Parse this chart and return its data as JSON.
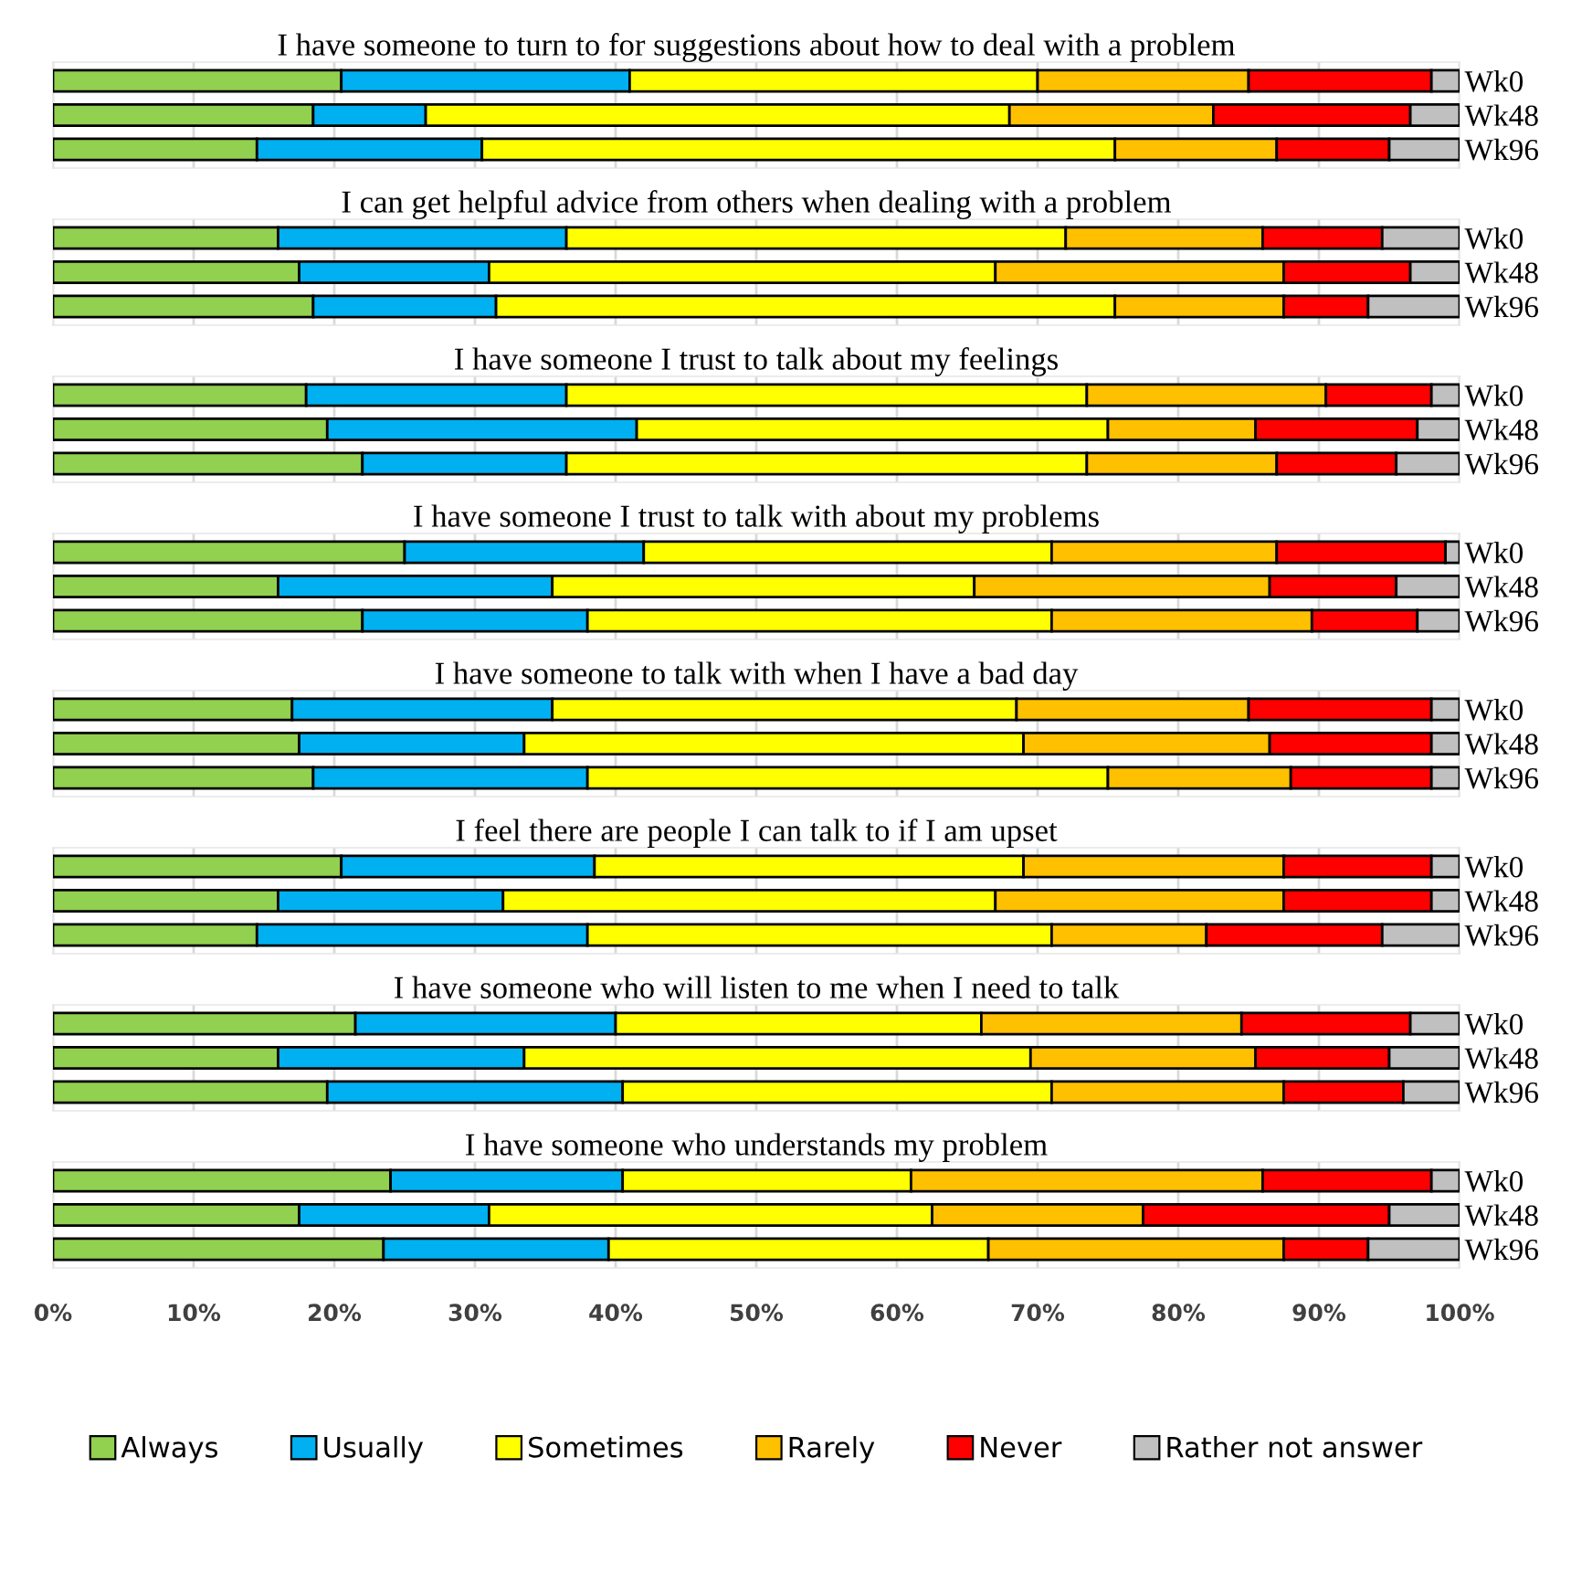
{
  "chart_data": [
    {
      "type": "bar",
      "orientation": "horizontal",
      "stacked": true,
      "title": "I have someone to turn to for suggestions about how to deal with a problem",
      "categories": [
        "Wk0",
        "Wk48",
        "Wk96"
      ],
      "xlim": [
        0,
        100
      ],
      "xticks": [
        0,
        10,
        20,
        30,
        40,
        50,
        60,
        70,
        80,
        90,
        100
      ],
      "grid": "x",
      "tick_labels": "y",
      "series": [
        {
          "color": "#92d050",
          "values": [
            20.5,
            18.5,
            14.5
          ]
        },
        {
          "color": "#00b0f0",
          "values": [
            20.5,
            8,
            16
          ]
        },
        {
          "color": "#ffff00",
          "values": [
            29,
            41.5,
            45
          ]
        },
        {
          "color": "#ffc000",
          "values": [
            15,
            14.5,
            11.5
          ]
        },
        {
          "color": "#ff0000",
          "values": [
            13,
            14,
            8
          ]
        },
        {
          "color": "#c0c0c0",
          "values": [
            2,
            3.5,
            5
          ]
        }
      ]
    },
    {
      "type": "bar",
      "orientation": "horizontal",
      "stacked": true,
      "title": "I can get helpful advice from others when dealing with a problem",
      "categories": [
        "Wk0",
        "Wk48",
        "Wk96"
      ],
      "xlim": [
        0,
        100
      ],
      "xticks": [
        0,
        10,
        20,
        30,
        40,
        50,
        60,
        70,
        80,
        90,
        100
      ],
      "grid": "x",
      "tick_labels": "y",
      "series": [
        {
          "color": "#92d050",
          "values": [
            16,
            17.5,
            18.5
          ]
        },
        {
          "color": "#00b0f0",
          "values": [
            20.5,
            13.5,
            13
          ]
        },
        {
          "color": "#ffff00",
          "values": [
            35.5,
            36,
            44
          ]
        },
        {
          "color": "#ffc000",
          "values": [
            14,
            20.5,
            12
          ]
        },
        {
          "color": "#ff0000",
          "values": [
            8.5,
            9,
            6
          ]
        },
        {
          "color": "#c0c0c0",
          "values": [
            5.5,
            3.5,
            6.5
          ]
        }
      ]
    },
    {
      "type": "bar",
      "orientation": "horizontal",
      "stacked": true,
      "title": "I have someone I trust to talk about my feelings",
      "categories": [
        "Wk0",
        "Wk48",
        "Wk96"
      ],
      "xlim": [
        0,
        100
      ],
      "xticks": [
        0,
        10,
        20,
        30,
        40,
        50,
        60,
        70,
        80,
        90,
        100
      ],
      "grid": "x",
      "tick_labels": "y",
      "series": [
        {
          "color": "#92d050",
          "values": [
            18,
            19.5,
            22
          ]
        },
        {
          "color": "#00b0f0",
          "values": [
            18.5,
            22,
            14.5
          ]
        },
        {
          "color": "#ffff00",
          "values": [
            37,
            33.5,
            37
          ]
        },
        {
          "color": "#ffc000",
          "values": [
            17,
            10.5,
            13.5
          ]
        },
        {
          "color": "#ff0000",
          "values": [
            7.5,
            11.5,
            8.5
          ]
        },
        {
          "color": "#c0c0c0",
          "values": [
            2,
            3,
            4.5
          ]
        }
      ]
    },
    {
      "type": "bar",
      "orientation": "horizontal",
      "stacked": true,
      "title": "I have someone I trust to talk with about my problems",
      "categories": [
        "Wk0",
        "Wk48",
        "Wk96"
      ],
      "xlim": [
        0,
        100
      ],
      "xticks": [
        0,
        10,
        20,
        30,
        40,
        50,
        60,
        70,
        80,
        90,
        100
      ],
      "grid": "x",
      "tick_labels": "y",
      "series": [
        {
          "color": "#92d050",
          "values": [
            25,
            16,
            22
          ]
        },
        {
          "color": "#00b0f0",
          "values": [
            17,
            19.5,
            16
          ]
        },
        {
          "color": "#ffff00",
          "values": [
            29,
            30,
            33
          ]
        },
        {
          "color": "#ffc000",
          "values": [
            16,
            21,
            18.5
          ]
        },
        {
          "color": "#ff0000",
          "values": [
            12,
            9,
            7.5
          ]
        },
        {
          "color": "#c0c0c0",
          "values": [
            1,
            4.5,
            3
          ]
        }
      ]
    },
    {
      "type": "bar",
      "orientation": "horizontal",
      "stacked": true,
      "title": "I have someone to talk with when I have a bad day",
      "categories": [
        "Wk0",
        "Wk48",
        "Wk96"
      ],
      "xlim": [
        0,
        100
      ],
      "xticks": [
        0,
        10,
        20,
        30,
        40,
        50,
        60,
        70,
        80,
        90,
        100
      ],
      "grid": "x",
      "tick_labels": "y",
      "series": [
        {
          "color": "#92d050",
          "values": [
            17,
            17.5,
            18.5
          ]
        },
        {
          "color": "#00b0f0",
          "values": [
            18.5,
            16,
            19.5
          ]
        },
        {
          "color": "#ffff00",
          "values": [
            33,
            35.5,
            37
          ]
        },
        {
          "color": "#ffc000",
          "values": [
            16.5,
            17.5,
            13
          ]
        },
        {
          "color": "#ff0000",
          "values": [
            13,
            11.5,
            10
          ]
        },
        {
          "color": "#c0c0c0",
          "values": [
            2,
            2,
            2
          ]
        }
      ]
    },
    {
      "type": "bar",
      "orientation": "horizontal",
      "stacked": true,
      "title": "I feel there are people I can talk to if I am upset",
      "categories": [
        "Wk0",
        "Wk48",
        "Wk96"
      ],
      "xlim": [
        0,
        100
      ],
      "xticks": [
        0,
        10,
        20,
        30,
        40,
        50,
        60,
        70,
        80,
        90,
        100
      ],
      "grid": "x",
      "tick_labels": "y",
      "series": [
        {
          "color": "#92d050",
          "values": [
            20.5,
            16,
            14.5
          ]
        },
        {
          "color": "#00b0f0",
          "values": [
            18,
            16,
            23.5
          ]
        },
        {
          "color": "#ffff00",
          "values": [
            30.5,
            35,
            33
          ]
        },
        {
          "color": "#ffc000",
          "values": [
            18.5,
            20.5,
            11
          ]
        },
        {
          "color": "#ff0000",
          "values": [
            10.5,
            10.5,
            12.5
          ]
        },
        {
          "color": "#c0c0c0",
          "values": [
            2,
            2,
            5.5
          ]
        }
      ]
    },
    {
      "type": "bar",
      "orientation": "horizontal",
      "stacked": true,
      "title": "I have someone who will listen to me when I need to talk",
      "categories": [
        "Wk0",
        "Wk48",
        "Wk96"
      ],
      "xlim": [
        0,
        100
      ],
      "xticks": [
        0,
        10,
        20,
        30,
        40,
        50,
        60,
        70,
        80,
        90,
        100
      ],
      "grid": "x",
      "tick_labels": "y",
      "series": [
        {
          "color": "#92d050",
          "values": [
            21.5,
            16,
            19.5
          ]
        },
        {
          "color": "#00b0f0",
          "values": [
            18.5,
            17.5,
            21
          ]
        },
        {
          "color": "#ffff00",
          "values": [
            26,
            36,
            30.5
          ]
        },
        {
          "color": "#ffc000",
          "values": [
            18.5,
            16,
            16.5
          ]
        },
        {
          "color": "#ff0000",
          "values": [
            12,
            9.5,
            8.5
          ]
        },
        {
          "color": "#c0c0c0",
          "values": [
            3.5,
            5,
            4
          ]
        }
      ]
    },
    {
      "type": "bar",
      "orientation": "horizontal",
      "stacked": true,
      "title": "I have someone who understands my problem",
      "categories": [
        "Wk0",
        "Wk48",
        "Wk96"
      ],
      "xlim": [
        0,
        100
      ],
      "xticks": [
        {
          "value": 0,
          "label": "0%"
        },
        {
          "value": 10,
          "label": "10%"
        },
        {
          "value": 20,
          "label": "20%"
        },
        {
          "value": 30,
          "label": "30%"
        },
        {
          "value": 40,
          "label": "40%"
        },
        {
          "value": 50,
          "label": "50%"
        },
        {
          "value": 60,
          "label": "60%"
        },
        {
          "value": 70,
          "label": "70%"
        },
        {
          "value": 80,
          "label": "80%"
        },
        {
          "value": 90,
          "label": "90%"
        },
        {
          "value": 100,
          "label": "100%"
        }
      ],
      "grid": "x",
      "legend": "bottom",
      "series": [
        {
          "name": "Always",
          "color": "#92d050",
          "values": [
            24,
            17.5,
            23.5
          ]
        },
        {
          "name": "Usually",
          "color": "#00b0f0",
          "values": [
            16.5,
            13.5,
            16
          ]
        },
        {
          "name": "Sometimes",
          "color": "#ffff00",
          "values": [
            20.5,
            31.5,
            27
          ]
        },
        {
          "name": "Rarely",
          "color": "#ffc000",
          "values": [
            25,
            15,
            21
          ]
        },
        {
          "name": "Never",
          "color": "#ff0000",
          "values": [
            12,
            17.5,
            6
          ]
        },
        {
          "name": "Rather not answer",
          "color": "#c0c0c0",
          "values": [
            2,
            5,
            6.5
          ]
        }
      ]
    }
  ]
}
